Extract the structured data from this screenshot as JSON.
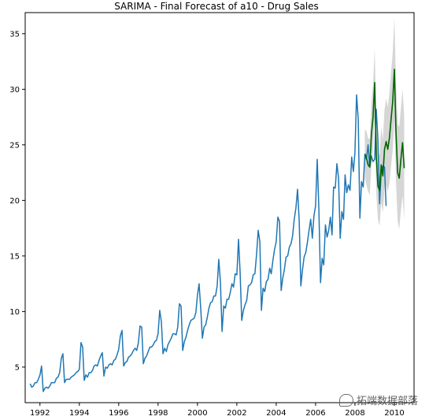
{
  "chart_data": {
    "type": "line",
    "title": "SARIMA - Final Forecast of a10 - Drug Sales",
    "xlabel": "",
    "ylabel": "",
    "xlim": [
      1991.25,
      2011.0
    ],
    "ylim": [
      1.8,
      36.9
    ],
    "x_ticks": [
      1992,
      1994,
      1996,
      1998,
      2000,
      2002,
      2004,
      2006,
      2008,
      2010
    ],
    "y_ticks": [
      5,
      10,
      15,
      20,
      25,
      30,
      35
    ],
    "grid": false,
    "legend": "none",
    "series": [
      {
        "kind": "observed",
        "color": "#1f77b4",
        "start": 1991.5,
        "step": 0.08333,
        "values": [
          3.5,
          3.2,
          3.3,
          3.6,
          3.6,
          3.9,
          4.3,
          5.1,
          2.8,
          3.1,
          3.2,
          3.1,
          3.3,
          3.6,
          3.6,
          3.6,
          4.0,
          4.1,
          4.5,
          5.8,
          6.2,
          3.6,
          3.9,
          3.9,
          3.9,
          4.1,
          4.2,
          4.3,
          4.5,
          4.6,
          4.8,
          7.2,
          6.8,
          3.8,
          4.3,
          4.1,
          4.5,
          4.5,
          4.7,
          5.1,
          5.2,
          5.1,
          5.6,
          6.0,
          6.3,
          4.2,
          5.0,
          4.9,
          5.2,
          5.3,
          5.2,
          5.6,
          5.7,
          6.1,
          6.6,
          7.8,
          8.3,
          5.1,
          5.4,
          5.5,
          5.9,
          6.0,
          6.2,
          6.5,
          6.7,
          6.5,
          7.2,
          8.7,
          8.6,
          5.3,
          5.8,
          6.0,
          6.4,
          6.8,
          6.8,
          7.0,
          7.3,
          7.4,
          8.0,
          10.1,
          9.1,
          6.2,
          6.7,
          6.4,
          7.0,
          7.3,
          7.6,
          8.0,
          8.0,
          7.9,
          8.6,
          10.7,
          10.5,
          6.5,
          7.3,
          7.7,
          8.3,
          8.8,
          9.2,
          9.3,
          9.4,
          9.9,
          11.5,
          12.5,
          10.3,
          7.6,
          8.6,
          8.8,
          9.5,
          10.3,
          10.8,
          10.9,
          11.4,
          11.4,
          12.3,
          14.7,
          12.7,
          8.2,
          10.5,
          10.3,
          11.1,
          11.1,
          11.7,
          12.5,
          12.2,
          13.4,
          13.3,
          16.5,
          13.6,
          9.2,
          10.1,
          10.6,
          11.0,
          12.3,
          12.4,
          12.6,
          13.3,
          13.4,
          15.1,
          17.3,
          16.3,
          10.1,
          12.1,
          11.8,
          12.7,
          12.9,
          13.9,
          13.4,
          14.6,
          15.6,
          16.3,
          18.5,
          18.1,
          11.9,
          13.0,
          13.8,
          14.9,
          15.0,
          15.8,
          16.1,
          16.8,
          18.3,
          19.3,
          21.0,
          18.2,
          12.3,
          13.7,
          14.9,
          15.3,
          16.2,
          17.3,
          18.3,
          16.6,
          18.6,
          19.5,
          23.7,
          19.2,
          12.6,
          14.8,
          14.2,
          17.8,
          16.7,
          17.3,
          18.5,
          16.9,
          21.2,
          21.1,
          23.3,
          22.0,
          16.6,
          19.0,
          18.3,
          22.3,
          20.7,
          21.4,
          20.9,
          23.9,
          22.6,
          24.3,
          29.5,
          27.3,
          18.4,
          21.7,
          21.2,
          24.1,
          23.7,
          25.0,
          23.0,
          24.0,
          23.5,
          23.7,
          28.2,
          25.5,
          19.7,
          22.5,
          23.1,
          23.0,
          19.5
        ]
      },
      {
        "kind": "forecast",
        "color": "#006400",
        "start": 2008.5,
        "step": 0.08333,
        "values": [
          24.2,
          23.8,
          23.2,
          23.0,
          25.9,
          27.5,
          30.6,
          23.9,
          21.3,
          20.9,
          23.2,
          22.2,
          24.6,
          25.3,
          24.6,
          25.6,
          27.3,
          28.9,
          31.8,
          26.1,
          22.5,
          22.0,
          23.7,
          25.2,
          22.9
        ],
        "lower": [
          22.0,
          21.4,
          20.8,
          20.5,
          23.0,
          24.6,
          27.5,
          20.6,
          18.3,
          17.7,
          19.8,
          18.9,
          21.0,
          21.4,
          20.8,
          21.5,
          23.1,
          24.5,
          27.2,
          21.6,
          18.1,
          17.4,
          19.1,
          20.4,
          18.2
        ],
        "upper": [
          26.4,
          26.2,
          25.6,
          25.5,
          28.8,
          30.4,
          33.7,
          27.2,
          24.3,
          24.1,
          26.6,
          25.5,
          28.2,
          29.2,
          28.4,
          29.7,
          31.5,
          33.3,
          36.4,
          30.6,
          26.9,
          26.6,
          28.3,
          30.0,
          27.6
        ]
      }
    ]
  },
  "watermark": {
    "text": "拓端数据部落",
    "faint_url": "http://blog.csdn.net/..."
  }
}
